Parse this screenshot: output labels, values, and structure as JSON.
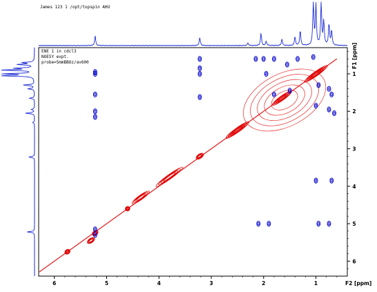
{
  "header_text": "James  123  1  /opt/topspin  AHU",
  "plot_info": [
    "ENE 1 in cdcl3",
    "NOESY expt.",
    "probe=5mmBBOz/av600"
  ],
  "colors": {
    "positive": "#0000cc",
    "negative": "#e00000",
    "projection": "#1a2bd6",
    "frame": "#000000"
  },
  "chart_data": {
    "type": "contour",
    "title": "",
    "x_axis": {
      "label": "F2 [ppm]",
      "range": [
        6.3,
        0.4
      ],
      "reversed": true,
      "ticks": [
        "6",
        "5",
        "4",
        "3",
        "2",
        "1"
      ]
    },
    "y_axis": {
      "label": "F1 [ppm]",
      "range": [
        0.3,
        6.4
      ],
      "position": "right",
      "ticks": [
        "1",
        "2",
        "3",
        "4",
        "5",
        "6"
      ]
    },
    "grid": false,
    "diagonal": {
      "color": "negative",
      "from_ppm": [
        6.3,
        6.3
      ],
      "to_ppm": [
        0.6,
        0.6
      ]
    },
    "diagonal_clusters": [
      {
        "ppm": [
          5.75,
          5.75
        ],
        "w": 0.12
      },
      {
        "ppm": [
          5.3,
          5.45
        ],
        "w": 0.18
      },
      {
        "ppm": [
          5.22,
          5.25
        ],
        "w": 0.14
      },
      {
        "ppm": [
          4.6,
          4.6
        ],
        "w": 0.1
      },
      {
        "ppm": [
          4.35,
          4.3
        ],
        "w": 0.45
      },
      {
        "ppm": [
          3.8,
          3.75
        ],
        "w": 0.7
      },
      {
        "ppm": [
          3.22,
          3.2
        ],
        "w": 0.18
      },
      {
        "ppm": [
          2.5,
          2.5
        ],
        "w": 0.6
      },
      {
        "ppm": [
          1.65,
          1.65
        ],
        "w": 0.5
      },
      {
        "ppm": [
          1.0,
          1.0
        ],
        "w": 0.6
      }
    ],
    "negative_blob": {
      "center_ppm": [
        1.6,
        1.7
      ],
      "extent_ppm": [
        0.85,
        0.7
      ]
    },
    "cross_peaks": [
      {
        "x": 5.22,
        "y": 0.95
      },
      {
        "x": 5.22,
        "y": 1.0
      },
      {
        "x": 5.22,
        "y": 1.55
      },
      {
        "x": 5.22,
        "y": 2.0
      },
      {
        "x": 5.22,
        "y": 2.15
      },
      {
        "x": 5.22,
        "y": 5.15
      },
      {
        "x": 5.22,
        "y": 5.3
      },
      {
        "x": 3.22,
        "y": 0.6
      },
      {
        "x": 3.22,
        "y": 0.85
      },
      {
        "x": 3.22,
        "y": 1.0
      },
      {
        "x": 3.22,
        "y": 1.62
      },
      {
        "x": 2.15,
        "y": 0.6
      },
      {
        "x": 2.0,
        "y": 0.6
      },
      {
        "x": 1.95,
        "y": 1.0
      },
      {
        "x": 1.8,
        "y": 0.6
      },
      {
        "x": 1.55,
        "y": 0.75
      },
      {
        "x": 1.35,
        "y": 0.6
      },
      {
        "x": 1.05,
        "y": 0.55
      },
      {
        "x": 0.95,
        "y": 1.3
      },
      {
        "x": 0.75,
        "y": 1.4
      },
      {
        "x": 0.7,
        "y": 1.55
      },
      {
        "x": 0.65,
        "y": 2.05
      },
      {
        "x": 1.8,
        "y": 1.55
      },
      {
        "x": 1.5,
        "y": 1.45
      },
      {
        "x": 1.0,
        "y": 1.85
      },
      {
        "x": 0.75,
        "y": 1.95
      },
      {
        "x": 1.0,
        "y": 3.85
      },
      {
        "x": 0.7,
        "y": 3.85
      },
      {
        "x": 2.1,
        "y": 5.0
      },
      {
        "x": 1.9,
        "y": 5.0
      },
      {
        "x": 0.95,
        "y": 5.0
      },
      {
        "x": 0.75,
        "y": 5.0
      }
    ],
    "projection_peaks": [
      {
        "ppm": 5.22,
        "h": 0.22
      },
      {
        "ppm": 3.22,
        "h": 0.18
      },
      {
        "ppm": 2.3,
        "h": 0.06
      },
      {
        "ppm": 2.05,
        "h": 0.28
      },
      {
        "ppm": 1.95,
        "h": 0.1
      },
      {
        "ppm": 1.65,
        "h": 0.15
      },
      {
        "ppm": 1.4,
        "h": 0.2
      },
      {
        "ppm": 1.3,
        "h": 0.35
      },
      {
        "ppm": 1.05,
        "h": 1.0
      },
      {
        "ppm": 1.0,
        "h": 0.9
      },
      {
        "ppm": 0.9,
        "h": 0.95
      },
      {
        "ppm": 0.85,
        "h": 0.55
      },
      {
        "ppm": 0.75,
        "h": 0.5
      },
      {
        "ppm": 0.7,
        "h": 0.35
      }
    ]
  }
}
